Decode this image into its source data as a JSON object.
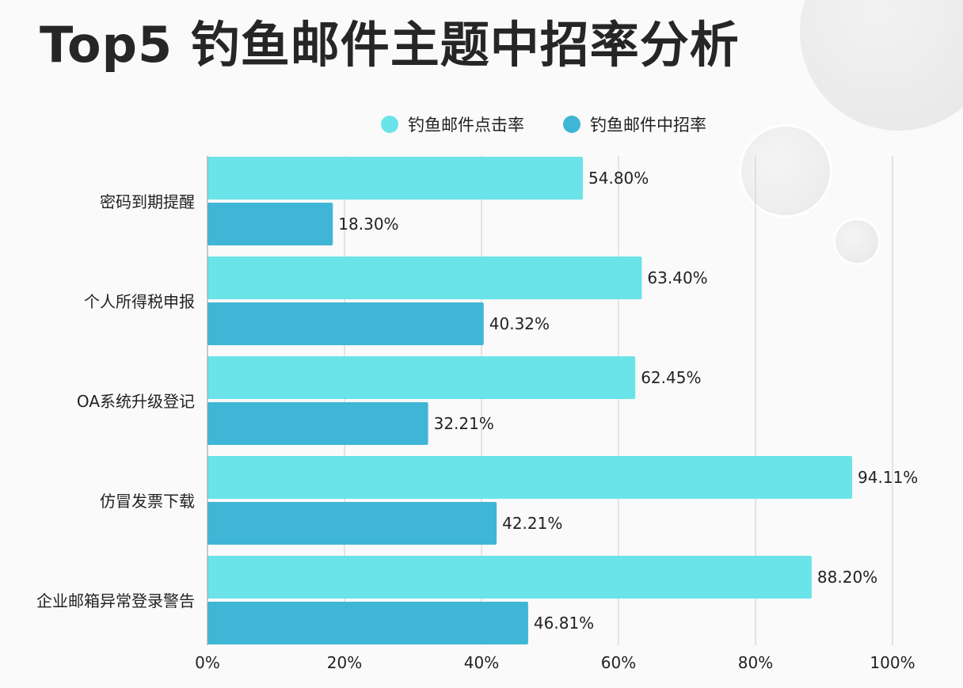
{
  "title": "Top5 钓鱼邮件主题中招率分析",
  "colors": {
    "click": "#6ae3e9",
    "hit": "#40b6d6",
    "grid": "#cccccc",
    "axis": "#999999"
  },
  "chart_data": {
    "type": "bar",
    "orientation": "horizontal",
    "title": "Top5 钓鱼邮件主题中招率分析",
    "categories": [
      "密码到期提醒",
      "个人所得税申报",
      "OA系统升级登记",
      "仿冒发票下载",
      "企业邮箱异常登录警告"
    ],
    "series": [
      {
        "name": "钓鱼邮件点击率",
        "values": [
          54.8,
          63.4,
          62.45,
          94.11,
          88.2
        ],
        "labels": [
          "54.80%",
          "63.40%",
          "62.45%",
          "94.11%",
          "88.20%"
        ]
      },
      {
        "name": "钓鱼邮件中招率",
        "values": [
          18.3,
          40.32,
          32.21,
          42.21,
          46.81
        ],
        "labels": [
          "18.30%",
          "40.32%",
          "32.21%",
          "42.21%",
          "46.81%"
        ]
      }
    ],
    "xlim": [
      0,
      100
    ],
    "x_ticks": [
      "0%",
      "20%",
      "40%",
      "60%",
      "80%",
      "100%"
    ],
    "grid": true,
    "legend_position": "top-right"
  }
}
